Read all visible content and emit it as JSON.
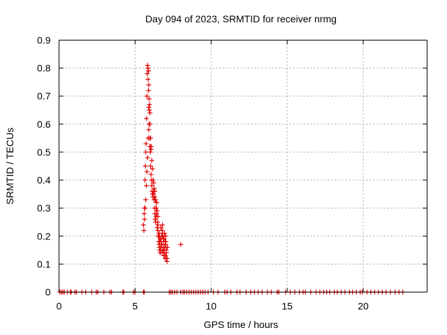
{
  "chart_data": {
    "type": "scatter",
    "title": "Day 094 of 2023, SRMTID for receiver nrmg",
    "xlabel": "GPS time / hours",
    "ylabel": "SRMTID / TECUs",
    "xlim": [
      0,
      24.2
    ],
    "ylim": [
      0,
      0.9
    ],
    "xticks": [
      0,
      5,
      10,
      15,
      20
    ],
    "yticks": [
      0,
      0.1,
      0.2,
      0.3,
      0.4,
      0.5,
      0.6,
      0.7,
      0.8,
      0.9
    ],
    "xtick_labels": [
      "0",
      "5",
      "10",
      "15",
      "20"
    ],
    "ytick_labels": [
      "0",
      "0.1",
      "0.2",
      "0.3",
      "0.4",
      "0.5",
      "0.6",
      "0.7",
      "0.8",
      "0.9"
    ],
    "grid": true,
    "marker": "+",
    "color": "#e00000",
    "series": [
      {
        "x": [
          0.05,
          0.15,
          0.25,
          0.35,
          0.55,
          0.75,
          0.8,
          1.05,
          1.15,
          1.5,
          1.75,
          2.15,
          2.45,
          2.55,
          2.95,
          3.35,
          3.45,
          4.2,
          4.25,
          4.9,
          5.0,
          5.55,
          5.6,
          7.25,
          7.35,
          7.45,
          7.6,
          7.75,
          8.0,
          8.15,
          8.25,
          8.4,
          8.55,
          8.7,
          8.85,
          9.0,
          9.15,
          9.3,
          9.45,
          9.6,
          9.8,
          10.15,
          10.45,
          10.9,
          11.05,
          11.3,
          11.7,
          11.9,
          12.3,
          12.6,
          12.85,
          13.1,
          13.35,
          13.7,
          13.95,
          14.35,
          14.45,
          14.9,
          15.2,
          15.5,
          15.8,
          16.05,
          16.2,
          16.55,
          16.9,
          17.15,
          17.4,
          17.6,
          17.8,
          18.1,
          18.3,
          18.55,
          18.8,
          19.1,
          19.3,
          19.55,
          19.8,
          19.95,
          20.25,
          20.5,
          20.75,
          21.0,
          21.25,
          21.5,
          21.8,
          22.1,
          22.35,
          22.6,
          5.55,
          5.6,
          5.62,
          5.65,
          5.68,
          5.7,
          5.72,
          5.75,
          5.78,
          5.8,
          5.82,
          5.85,
          5.88,
          5.9,
          5.92,
          5.95,
          5.98,
          6.0,
          6.02,
          6.05,
          6.08,
          6.1,
          6.12,
          6.15,
          6.18,
          6.2,
          6.22,
          6.25,
          6.28,
          6.3,
          6.32,
          6.35,
          6.38,
          6.4,
          6.42,
          6.45,
          6.48,
          6.5,
          6.52,
          6.55,
          6.58,
          6.6,
          6.62,
          6.65,
          6.68,
          6.7,
          6.72,
          6.75,
          6.78,
          6.8,
          6.82,
          6.85,
          6.88,
          6.9,
          6.92,
          6.95,
          6.98,
          7.0,
          7.02,
          7.05,
          7.08,
          7.1,
          5.62,
          5.7,
          5.78,
          5.86,
          5.94,
          6.02,
          6.1,
          6.18,
          6.26,
          6.34,
          6.42,
          6.5,
          6.58,
          6.66,
          6.74,
          6.82,
          6.9,
          6.98,
          7.06,
          7.12,
          5.58,
          5.66,
          5.74,
          5.82,
          5.9,
          5.98,
          6.06,
          6.14,
          6.22,
          6.3,
          6.38,
          6.46,
          6.54,
          6.62,
          6.7,
          6.78,
          6.86,
          6.94,
          7.02,
          5.85,
          5.88,
          5.9,
          5.92,
          5.95,
          5.98,
          6.0,
          6.05,
          6.3,
          6.4,
          6.5,
          6.6,
          6.7,
          6.8,
          6.9,
          7.0,
          7.1,
          8.0
        ],
        "y": [
          0,
          0,
          0,
          0,
          0,
          0,
          0,
          0,
          0,
          0,
          0,
          0,
          0,
          0,
          0,
          0,
          0,
          0,
          0,
          0,
          0,
          0,
          0,
          0,
          0,
          0,
          0,
          0,
          0,
          0,
          0,
          0,
          0,
          0,
          0,
          0,
          0,
          0,
          0,
          0,
          0,
          0,
          0,
          0,
          0,
          0,
          0,
          0,
          0,
          0,
          0,
          0,
          0,
          0,
          0,
          0,
          0,
          0,
          0,
          0,
          0,
          0,
          0,
          0,
          0,
          0,
          0,
          0,
          0,
          0,
          0,
          0,
          0,
          0,
          0,
          0,
          0,
          0,
          0,
          0,
          0,
          0,
          0,
          0,
          0,
          0,
          0,
          0,
          0.24,
          0.28,
          0.3,
          0.4,
          0.45,
          0.5,
          0.53,
          0.62,
          0.7,
          0.78,
          0.81,
          0.76,
          0.72,
          0.66,
          0.6,
          0.55,
          0.52,
          0.5,
          0.45,
          0.42,
          0.4,
          0.38,
          0.36,
          0.35,
          0.34,
          0.35,
          0.36,
          0.33,
          0.3,
          0.28,
          0.26,
          0.25,
          0.27,
          0.3,
          0.32,
          0.29,
          0.25,
          0.22,
          0.2,
          0.18,
          0.17,
          0.16,
          0.15,
          0.14,
          0.15,
          0.16,
          0.18,
          0.2,
          0.22,
          0.24,
          0.2,
          0.17,
          0.15,
          0.13,
          0.14,
          0.16,
          0.18,
          0.2,
          0.17,
          0.15,
          0.12,
          0.11,
          0.26,
          0.33,
          0.43,
          0.55,
          0.65,
          0.55,
          0.47,
          0.4,
          0.37,
          0.33,
          0.28,
          0.24,
          0.21,
          0.19,
          0.17,
          0.15,
          0.13,
          0.12,
          0.14,
          0.16,
          0.22,
          0.3,
          0.38,
          0.48,
          0.58,
          0.6,
          0.52,
          0.44,
          0.39,
          0.36,
          0.3,
          0.23,
          0.2,
          0.18,
          0.16,
          0.14,
          0.19,
          0.21,
          0.18,
          0.8,
          0.79,
          0.74,
          0.69,
          0.67,
          0.64,
          0.52,
          0.51,
          0.34,
          0.32,
          0.27,
          0.2,
          0.23,
          0.21,
          0.19,
          0.13,
          0.12,
          0.17
        ]
      }
    ]
  }
}
